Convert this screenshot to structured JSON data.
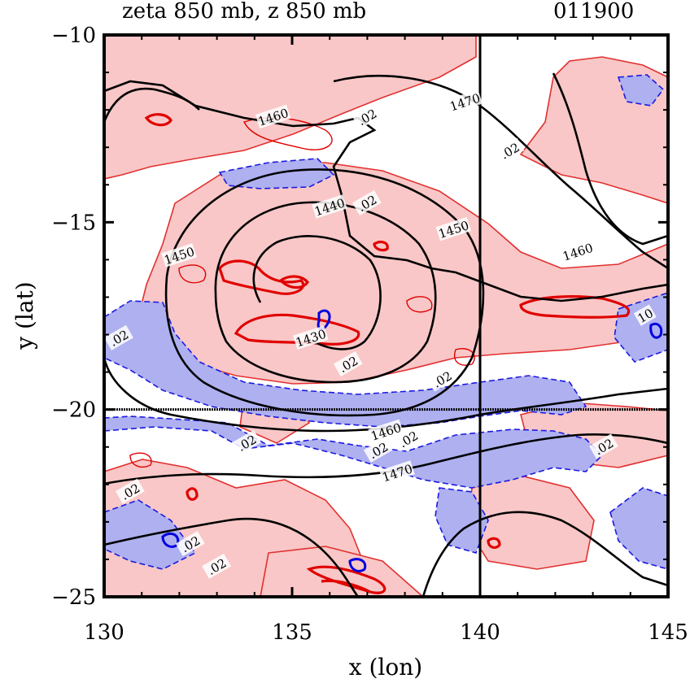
{
  "chart_data": {
    "type": "contour",
    "title": "zeta 850 mb, z 850 mb",
    "timestamp": "011900",
    "xlabel": "x (lon)",
    "ylabel": "y (lat)",
    "xlim": [
      130,
      145
    ],
    "ylim": [
      -25,
      -10
    ],
    "xticks": [
      130,
      135,
      140,
      145
    ],
    "yticks": [
      -10,
      -15,
      -20,
      -25
    ],
    "xtick_labels": [
      "130",
      "135",
      "140",
      "145"
    ],
    "ytick_labels": [
      "−10",
      "−15",
      "−20",
      "−25"
    ],
    "reference_lines": {
      "lon": 140,
      "lat": -20
    },
    "colors": {
      "positive_fill": "#f9c7c7",
      "negative_fill": "#aeb0f0",
      "positive_line": "#e00000",
      "negative_line": "#0000e0",
      "height_line": "#000000"
    },
    "height_contour_labels": [
      {
        "text": "1470",
        "lon": 139.6,
        "lat": -11.8
      },
      {
        "text": "1460",
        "lon": 134.5,
        "lat": -12.2
      },
      {
        "text": "1440",
        "lon": 136.0,
        "lat": -14.6
      },
      {
        "text": "1450",
        "lon": 139.3,
        "lat": -15.2
      },
      {
        "text": "1450",
        "lon": 132.0,
        "lat": -15.9
      },
      {
        "text": "1460",
        "lon": 142.6,
        "lat": -15.8
      },
      {
        "text": "1430",
        "lon": 135.5,
        "lat": -18.1
      },
      {
        "text": "1460",
        "lon": 137.5,
        "lat": -20.6
      },
      {
        "text": "1470",
        "lon": 137.8,
        "lat": -21.7
      }
    ],
    "vorticity_contour_labels": [
      {
        "text": ".02",
        "lon": 137.0,
        "lat": -12.2
      },
      {
        "text": ".02",
        "lon": 137.0,
        "lat": -14.5
      },
      {
        "text": ".02",
        "lon": 140.8,
        "lat": -13.1
      },
      {
        "text": ".02",
        "lon": 130.4,
        "lat": -18.1
      },
      {
        "text": ".02",
        "lon": 136.5,
        "lat": -18.8
      },
      {
        "text": ".02",
        "lon": 139.0,
        "lat": -19.2
      },
      {
        "text": ".02",
        "lon": 133.8,
        "lat": -20.9
      },
      {
        "text": ".02",
        "lon": 137.3,
        "lat": -21.1
      },
      {
        "text": ".02",
        "lon": 138.1,
        "lat": -20.8
      },
      {
        "text": ".02",
        "lon": 143.3,
        "lat": -21.0
      },
      {
        "text": ".02",
        "lon": 130.7,
        "lat": -22.2
      },
      {
        "text": ".02",
        "lon": 132.3,
        "lat": -23.6
      },
      {
        "text": ".02",
        "lon": 133.0,
        "lat": -24.2
      },
      {
        "text": "10",
        "lon": 144.4,
        "lat": -17.5
      }
    ]
  }
}
